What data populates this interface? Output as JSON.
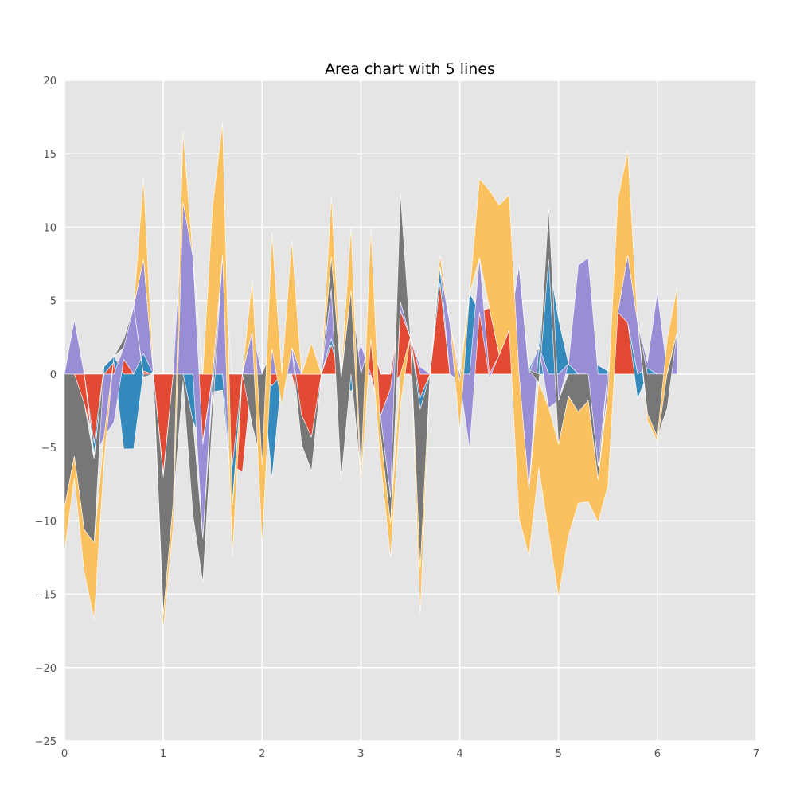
{
  "chart_data": {
    "type": "area",
    "title": "Area chart with 5 lines",
    "xlabel": "",
    "ylabel": "",
    "xlim": [
      0,
      7
    ],
    "ylim": [
      -25,
      20
    ],
    "x_ticks": [
      0,
      1,
      2,
      3,
      4,
      5,
      6,
      7
    ],
    "y_ticks": [
      20,
      15,
      10,
      5,
      0,
      -5,
      -10,
      -15,
      -20,
      -25
    ],
    "grid": true,
    "legend": "none",
    "stacked": true,
    "colors": {
      "background": "#e5e5e5",
      "grid": "#ffffff",
      "series": [
        "#e24a33",
        "#348abd",
        "#988ed5",
        "#777777",
        "#fbc15e"
      ]
    },
    "x": [
      0,
      0.1,
      0.2,
      0.3,
      0.4,
      0.5,
      0.6,
      0.7,
      0.8,
      0.9,
      1.0,
      1.1,
      1.2,
      1.3,
      1.4,
      1.5,
      1.6,
      1.7,
      1.8,
      1.9,
      2.0,
      2.1,
      2.2,
      2.3,
      2.4,
      2.5,
      2.6,
      2.7,
      2.8,
      2.9,
      3.0,
      3.1,
      3.2,
      3.3,
      3.4,
      3.5,
      3.6,
      3.7,
      3.8,
      3.9,
      4.0,
      4.1,
      4.2,
      4.3,
      4.4,
      4.5,
      4.6,
      4.7,
      4.8,
      4.9,
      5.0,
      5.1,
      5.2,
      5.3,
      5.4,
      5.5,
      5.6,
      5.7,
      5.8,
      5.9,
      6.0,
      6.1,
      6.2
    ],
    "series": [
      {
        "values": [
          0,
          0,
          -2,
          -4.7,
          0,
          0.8,
          1,
          0,
          0.2,
          0,
          -6.8,
          0,
          0,
          0,
          -4.6,
          0,
          0,
          -6.2,
          -6.7,
          0,
          0,
          -0.8,
          0,
          0,
          -2.8,
          -4.3,
          0,
          2,
          0,
          0,
          0,
          2.4,
          -2.8,
          -1,
          4.3,
          2.5,
          -1.6,
          0,
          6.2,
          0,
          0,
          0,
          4.2,
          4.5,
          1.3,
          3,
          0,
          0,
          0,
          0,
          0,
          0,
          0,
          0,
          0,
          0,
          4.2,
          3.5,
          0,
          0,
          0,
          0,
          0
        ]
      },
      {
        "values": [
          0,
          0,
          0,
          -0.8,
          0.5,
          0.4,
          -5.1,
          -5.1,
          1.2,
          0,
          -0.2,
          0,
          0,
          -3.2,
          -0.2,
          -1.2,
          -1.1,
          -2.5,
          0,
          0,
          0,
          -6.3,
          0,
          0,
          0,
          0,
          0,
          0.4,
          -0.3,
          -1.2,
          0,
          0,
          0,
          0,
          0,
          0,
          -0.8,
          0,
          1.1,
          0,
          0,
          5.5,
          0,
          0,
          0,
          0,
          0,
          0.3,
          1.9,
          7.8,
          3.7,
          0.7,
          0,
          0,
          0.6,
          0.2,
          0,
          0,
          -1.7,
          0.4,
          0,
          0,
          0
        ]
      },
      {
        "values": [
          0,
          3.7,
          0,
          -0.3,
          -4.3,
          -3.3,
          0.8,
          4.6,
          6.4,
          0,
          0,
          0,
          11.7,
          8,
          -6.4,
          0,
          8.1,
          -0.2,
          0,
          2.9,
          0,
          1.7,
          0,
          1.8,
          0,
          0,
          0,
          3.4,
          0,
          0,
          2,
          -0.1,
          -0.2,
          -7.4,
          0.6,
          0,
          0.5,
          0,
          0,
          3.5,
          -0.5,
          -5.1,
          3.7,
          -0.3,
          0,
          0,
          7.4,
          -7.9,
          0,
          -2.3,
          -1.8,
          0,
          7.4,
          7.9,
          -6.3,
          -1.2,
          0,
          4.6,
          3.5,
          0.4,
          5.6,
          0.1,
          2.9
        ]
      },
      {
        "values": [
          -9.1,
          -5.6,
          -8.6,
          -5.7,
          0,
          0,
          0.6,
          0,
          -0.2,
          0,
          -9.4,
          -8.8,
          -0.5,
          -6.4,
          -3,
          -1.5,
          0,
          0,
          0,
          -3.5,
          -6.2,
          0,
          0,
          0,
          -2,
          -2.3,
          0,
          2.2,
          -6.9,
          5.7,
          -6.9,
          0,
          -1.2,
          -1.8,
          7.4,
          0,
          -10.9,
          0,
          0,
          0,
          0,
          0,
          0,
          0,
          0,
          0,
          0,
          0,
          -0.6,
          3.5,
          -3,
          -1.5,
          -2.6,
          -1.8,
          -0.9,
          0,
          0,
          0,
          0,
          -2.7,
          -4.3,
          -2.3,
          0
        ]
      },
      {
        "values": [
          -3,
          -1.5,
          -2.9,
          -5.2,
          -1.7,
          0,
          0,
          0,
          5.5,
          0,
          -1,
          -1.6,
          4.8,
          0,
          0,
          11.5,
          9,
          -3.5,
          0,
          3.5,
          -5.4,
          7.9,
          -2.1,
          7.3,
          0,
          2.1,
          0,
          4.1,
          0,
          4.3,
          -0.6,
          7.6,
          -1.9,
          -2.3,
          -2.1,
          0,
          -3.1,
          0,
          0.8,
          0,
          -3.3,
          0,
          5.4,
          8,
          10.2,
          9.2,
          -9.8,
          -4.5,
          -5.8,
          -8.6,
          -10.4,
          -9.5,
          -6.2,
          -6.9,
          -2.9,
          -6.4,
          7.7,
          7.1,
          0,
          -0.5,
          -0.3,
          2.3,
          3
        ]
      }
    ]
  }
}
